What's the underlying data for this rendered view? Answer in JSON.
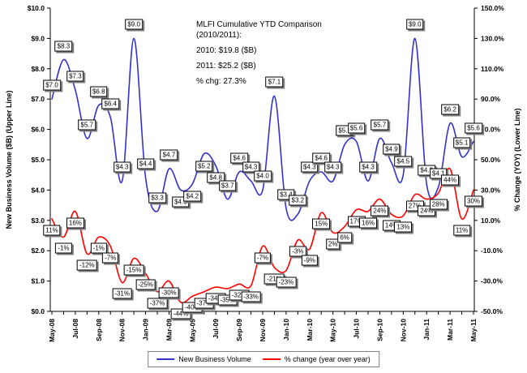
{
  "title_block": {
    "lines": [
      "MLFI Cumulative YTD Comparison (2010/2011):",
      "2010: $19.8 ($B)",
      "2011: $25.2 ($B)",
      "% chg: 27.3%"
    ]
  },
  "chart_data": {
    "type": "line",
    "x": [
      "May-08",
      "Jun-08",
      "Jul-08",
      "Aug-08",
      "Sep-08",
      "Oct-08",
      "Nov-08",
      "Dec-08",
      "Jan-09",
      "Feb-09",
      "Mar-09",
      "Apr-09",
      "May-09",
      "Jun-09",
      "Jul-09",
      "Aug-09",
      "Sep-09",
      "Oct-09",
      "Nov-09",
      "Dec-09",
      "Jan-10",
      "Feb-10",
      "Mar-10",
      "Apr-10",
      "May-10",
      "Jun-10",
      "Jul-10",
      "Aug-10",
      "Sep-10",
      "Oct-10",
      "Nov-10",
      "Dec-10",
      "Jan-11",
      "Feb-11",
      "Mar-11",
      "Apr-11",
      "May-11"
    ],
    "x_tick_labels": [
      "May-08",
      "Jul-08",
      "Sep-08",
      "Nov-08",
      "Jan-09",
      "Mar-09",
      "May-09",
      "Jul-09",
      "Sep-09",
      "Nov-09",
      "Jan-10",
      "Mar-10",
      "May-10",
      "Jul-10",
      "Sep-10",
      "Nov-10",
      "Jan-11",
      "Mar-11",
      "May-11"
    ],
    "series": [
      {
        "name": "New Business Volume",
        "axis": "left",
        "color": "#3333cc",
        "values": [
          7.0,
          8.3,
          7.3,
          5.7,
          6.8,
          6.4,
          4.3,
          9.0,
          4.4,
          3.3,
          4.7,
          4.0,
          4.2,
          5.2,
          4.8,
          3.7,
          4.6,
          4.3,
          4.0,
          7.1,
          3.4,
          3.2,
          4.3,
          4.6,
          4.3,
          5.5,
          5.6,
          4.3,
          5.7,
          4.9,
          4.5,
          9.0,
          4.2,
          4.1,
          6.2,
          5.1,
          5.6
        ],
        "label_prefix": "$",
        "label_decimals": 1,
        "label_suffix": ""
      },
      {
        "name": "% change (year over year)",
        "axis": "right",
        "color": "#ff0000",
        "values": [
          11,
          -1,
          16,
          -12,
          -1,
          -7,
          -31,
          -15,
          -25,
          -37,
          -30,
          -44,
          -40,
          -37,
          -34,
          -35,
          -32,
          -33,
          -7,
          -21,
          -23,
          -3,
          -9,
          15,
          2,
          6,
          17,
          16,
          24,
          14,
          13,
          27,
          24,
          28,
          44,
          11,
          30
        ],
        "label_prefix": "",
        "label_decimals": 0,
        "label_suffix": "%"
      }
    ],
    "left_axis": {
      "title": "New Business Volume ($B) (Upper Line)",
      "min": 0,
      "max": 10,
      "tick_labels": [
        "$0.0",
        "$1.0",
        "$2.0",
        "$3.0",
        "$4.0",
        "$5.0",
        "$6.0",
        "$7.0",
        "$8.0",
        "$9.0",
        "$10.0"
      ]
    },
    "right_axis": {
      "title": "% Change (YOY) (Lower Line)",
      "min": -50,
      "max": 150,
      "tick_labels": [
        "-50.0%",
        "-30.0%",
        "-10.0%",
        "10.0%",
        "30.0%",
        "50.0%",
        "70.0%",
        "90.0%",
        "110.0%",
        "130.0%",
        "150.0%"
      ]
    },
    "legend": {
      "items": [
        {
          "label": "New Business Volume",
          "color": "#3333cc"
        },
        {
          "label": "% change (year over year)",
          "color": "#ff0000"
        }
      ]
    },
    "grid": false,
    "legend_position": "bottom-center"
  }
}
